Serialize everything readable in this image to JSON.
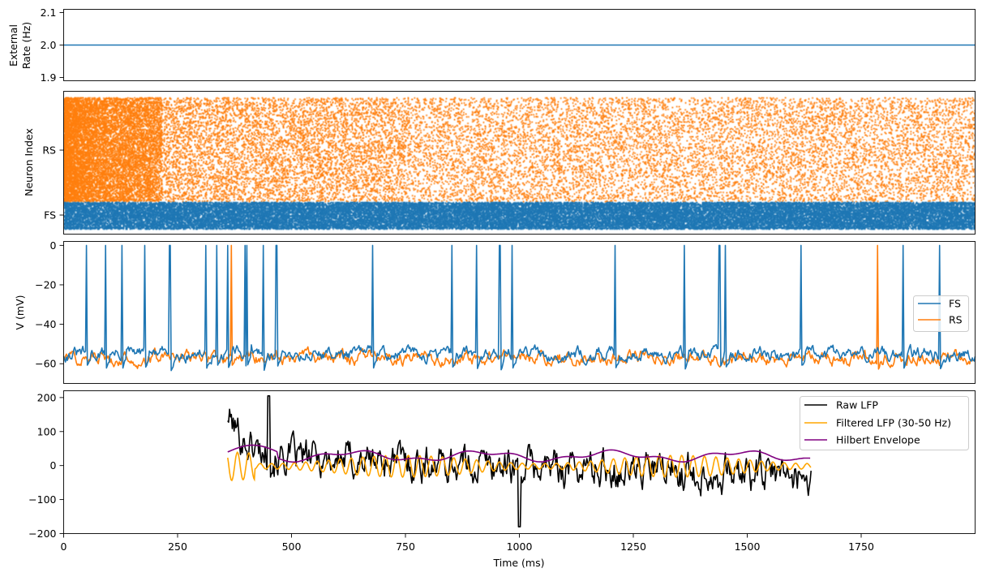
{
  "chart_data": [
    {
      "type": "line",
      "ylabel": [
        "External",
        "Rate (Hz)"
      ],
      "ylim": [
        1.89,
        2.11
      ],
      "yticks": [
        1.9,
        2.0,
        2.1
      ],
      "ytick_labels": [
        "1.9",
        "2.0",
        "2.1"
      ],
      "xlim": [
        0,
        2000
      ],
      "series": [
        {
          "color": "#1f77b4",
          "x": [
            0,
            2000
          ],
          "y": [
            2.0,
            2.0
          ]
        }
      ]
    },
    {
      "type": "scatter",
      "ylabel": "Neuron Index",
      "ytick_labels": [
        "FS",
        "RS"
      ],
      "xlim": [
        0,
        2000
      ],
      "series": [
        {
          "name": "RS",
          "color": "#ff7f0e",
          "x_range": [
            0,
            2000
          ],
          "density": "high early (0–100 ms), then uniform"
        },
        {
          "name": "FS",
          "color": "#1f77b4",
          "x_range": [
            0,
            2000
          ],
          "density": "uniform high"
        }
      ]
    },
    {
      "type": "line",
      "ylabel": "V (mV)",
      "ylim": [
        -70,
        2
      ],
      "yticks": [
        0,
        -20,
        -40,
        -60
      ],
      "ytick_labels": [
        "0",
        "−20",
        "−40",
        "−60"
      ],
      "xlim": [
        0,
        2000
      ],
      "legend": "center-right",
      "series": [
        {
          "name": "FS",
          "color": "#1f77b4",
          "baseline": -55,
          "spike_times": [
            50,
            92,
            127,
            177,
            231,
            233,
            312,
            335,
            360,
            397,
            401,
            438,
            466,
            468,
            677,
            851,
            905,
            956,
            957,
            983,
            1210,
            1362,
            1437,
            1440,
            1452,
            1617,
            1842,
            1922
          ]
        },
        {
          "name": "RS",
          "color": "#ff7f0e",
          "baseline": -57,
          "spike_times": [
            368,
            1785
          ]
        }
      ]
    },
    {
      "type": "line",
      "xlabel": "Time (ms)",
      "ylim": [
        -200,
        220
      ],
      "yticks": [
        200,
        100,
        0,
        -100,
        -200
      ],
      "ytick_labels": [
        "200",
        "100",
        "0",
        "−100",
        "−200"
      ],
      "xlim": [
        0,
        2000
      ],
      "xticks": [
        0,
        250,
        500,
        750,
        1000,
        1250,
        1500,
        1750
      ],
      "xtick_labels": [
        "0",
        "250",
        "500",
        "750",
        "1000",
        "1250",
        "1500",
        "1750"
      ],
      "legend": "top-right",
      "series": [
        {
          "name": "Raw LFP",
          "color": "#000000",
          "x_range": [
            360,
            1640
          ],
          "approx_values": {
            "start": 170,
            "peak": 205,
            "peak_time": 450,
            "min": -180,
            "min_time": 1000
          }
        },
        {
          "name": "Filtered LFP (30-50 Hz)",
          "color": "#ffa500",
          "x_range": [
            360,
            1640
          ],
          "amplitude": 30
        },
        {
          "name": "Hilbert Envelope",
          "color": "#800080",
          "x_range": [
            360,
            1640
          ],
          "range": [
            10,
            62
          ]
        }
      ]
    }
  ]
}
